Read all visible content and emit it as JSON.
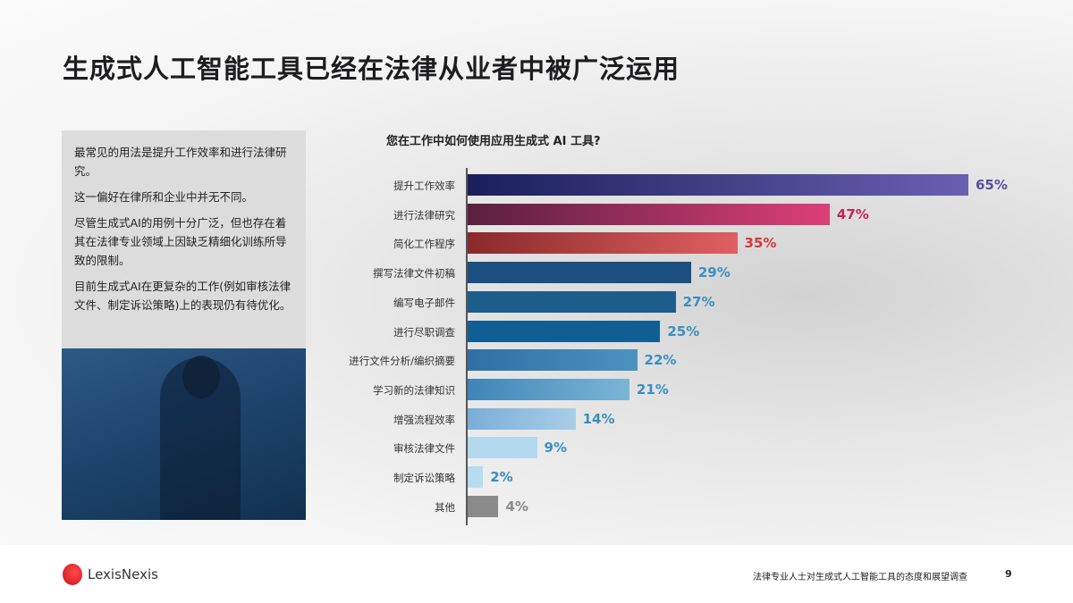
{
  "title": "生成式人工智能工具已经在法律从业者中被广泛运用",
  "sidebar": {
    "paragraphs": [
      "最常见的用法是提升工作效率和进行法律研究。",
      "这一偏好在律所和企业中并无不同。",
      "尽管生成式AI的用例十分广泛，但也存在着其在法律专业领域上因缺乏精细化训练所导致的限制。",
      "目前生成式AI在更复杂的工作(例如审核法律文件、制定诉讼策略)上的表现仍有待优化。"
    ]
  },
  "chart_data": {
    "type": "bar",
    "orientation": "horizontal",
    "title": "您在工作中如何使用应用生成式 AI 工具?",
    "categories": [
      "提升工作效率",
      "进行法律研究",
      "简化工作程序",
      "撰写法律文件初稿",
      "编写电子邮件",
      "进行尽职调查",
      "进行文件分析/编织摘要",
      "学习新的法律知识",
      "增强流程效率",
      "审核法律文件",
      "制定诉讼策略",
      "其他"
    ],
    "values": [
      65,
      47,
      35,
      29,
      27,
      25,
      22,
      21,
      14,
      9,
      2,
      4
    ],
    "value_labels": [
      "65%",
      "47%",
      "35%",
      "29%",
      "27%",
      "25%",
      "22%",
      "21%",
      "14%",
      "9%",
      "2%",
      "4%"
    ],
    "unit": "%",
    "xlim": [
      0,
      65
    ],
    "colors": [
      [
        "#1a1f5c",
        "#6a5fb0"
      ],
      [
        "#5a1f3f",
        "#dc3f78"
      ],
      [
        "#8a2a2a",
        "#e06060"
      ],
      [
        "#1b4f80",
        "#1b4f80"
      ],
      [
        "#1d5d8e",
        "#1d5d8e"
      ],
      [
        "#0f5f95",
        "#0f5f95"
      ],
      [
        "#2f6fa5",
        "#4b93bf"
      ],
      [
        "#3f84b8",
        "#7cb6d6"
      ],
      [
        "#7aaed8",
        "#a9cde8"
      ],
      [
        "#b4d9ee",
        "#b4d9ee"
      ],
      [
        "#b7dcef",
        "#b7dcef"
      ],
      [
        "#8a8a8a",
        "#8a8a8a"
      ]
    ],
    "label_colors": [
      "#5a4fa0",
      "#c8245a",
      "#d9343a",
      "#3a8fc0",
      "#3a8fc0",
      "#3a8fc0",
      "#3a8fc0",
      "#3a8fc0",
      "#3a8fc0",
      "#3a8fc0",
      "#3a8fc0",
      "#8a8a8a"
    ]
  },
  "footer": {
    "brand": "LexisNexis",
    "report_title": "法律专业人士对生成式人工智能工具的态度和展望调查",
    "page": "9"
  }
}
